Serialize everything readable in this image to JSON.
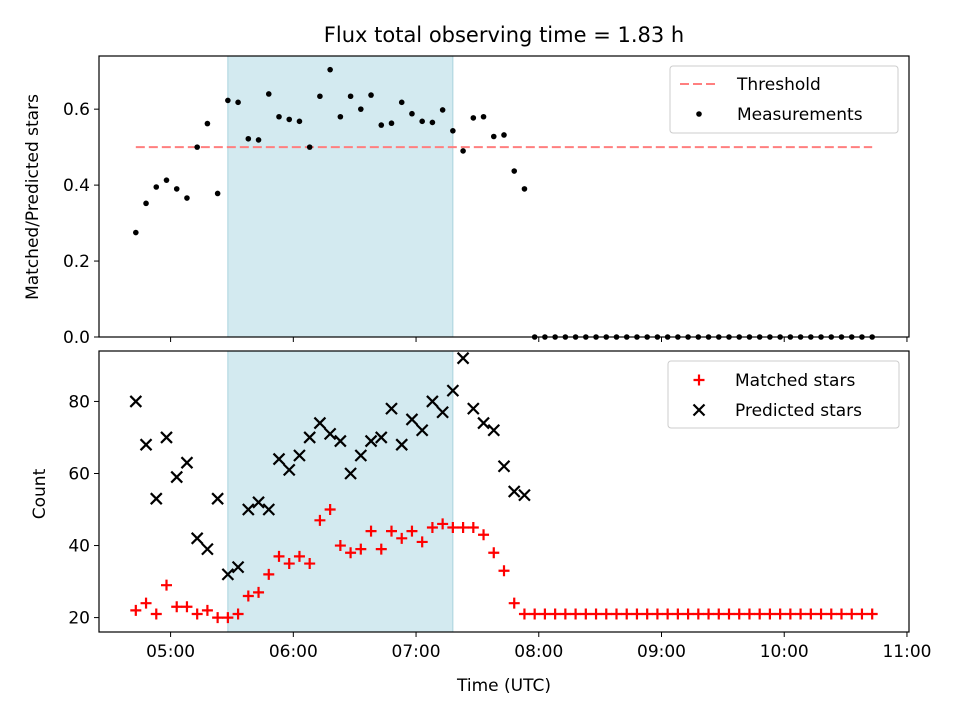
{
  "chart_data": [
    {
      "type": "scatter",
      "title": "Flux total observing time = 1.83 h",
      "xlabel": "",
      "ylabel": "Matched/Predicted stars",
      "xlim": [
        "04:25",
        "11:01"
      ],
      "ylim": [
        0,
        0.74
      ],
      "yticks": [
        0.0,
        0.2,
        0.4,
        0.6
      ],
      "ytick_labels": [
        "0.0",
        "0.2",
        "0.4",
        "0.6"
      ],
      "highlight_span": [
        "05:28",
        "07:18"
      ],
      "colors": {
        "highlight": "#d3eaf0",
        "threshold": "#ff7f7f",
        "measurements": "#000000"
      },
      "legend": [
        "Threshold",
        "Measurements"
      ],
      "legend_position": "top-right",
      "threshold": {
        "name": "Threshold",
        "y": 0.5,
        "x_range": [
          "04:43",
          "10:43"
        ]
      },
      "series": [
        {
          "name": "Measurements",
          "x": [
            "04:43",
            "04:48",
            "04:53",
            "04:58",
            "05:03",
            "05:08",
            "05:13",
            "05:18",
            "05:23",
            "05:28",
            "05:33",
            "05:38",
            "05:43",
            "05:48",
            "05:53",
            "05:58",
            "06:03",
            "06:08",
            "06:13",
            "06:18",
            "06:23",
            "06:28",
            "06:33",
            "06:38",
            "06:43",
            "06:48",
            "06:53",
            "06:58",
            "07:03",
            "07:08",
            "07:13",
            "07:18",
            "07:23",
            "07:28",
            "07:33",
            "07:38",
            "07:43",
            "07:48",
            "07:53",
            "07:58",
            "08:03",
            "08:08",
            "08:13",
            "08:18",
            "08:23",
            "08:28",
            "08:33",
            "08:38",
            "08:43",
            "08:48",
            "08:53",
            "08:58",
            "09:03",
            "09:08",
            "09:13",
            "09:18",
            "09:23",
            "09:28",
            "09:33",
            "09:38",
            "09:43",
            "09:48",
            "09:53",
            "09:58",
            "10:03",
            "10:08",
            "10:13",
            "10:18",
            "10:23",
            "10:28",
            "10:33",
            "10:38",
            "10:43"
          ],
          "y": [
            0.275,
            0.352,
            0.395,
            0.413,
            0.39,
            0.366,
            0.5,
            0.562,
            0.378,
            0.623,
            0.618,
            0.522,
            0.519,
            0.64,
            0.58,
            0.573,
            0.568,
            0.5,
            0.634,
            0.704,
            0.58,
            0.634,
            0.6,
            0.637,
            0.558,
            0.563,
            0.618,
            0.588,
            0.568,
            0.565,
            0.598,
            0.543,
            0.49,
            0.577,
            0.58,
            0.528,
            0.532,
            0.437,
            0.39,
            0.0,
            0.0,
            0.0,
            0.0,
            0.0,
            0.0,
            0.0,
            0.0,
            0.0,
            0.0,
            0.0,
            0.0,
            0.0,
            0.0,
            0.0,
            0.0,
            0.0,
            0.0,
            0.0,
            0.0,
            0.0,
            0.0,
            0.0,
            0.0,
            0.0,
            0.0,
            0.0,
            0.0,
            0.0,
            0.0,
            0.0,
            0.0,
            0.0,
            0.0
          ]
        }
      ]
    },
    {
      "type": "scatter",
      "title": "",
      "xlabel": "Time (UTC)",
      "ylabel": "Count",
      "xlim": [
        "04:25",
        "11:01"
      ],
      "ylim": [
        16,
        94
      ],
      "xticks": [
        "05:00",
        "06:00",
        "07:00",
        "08:00",
        "09:00",
        "10:00",
        "11:00"
      ],
      "yticks": [
        20,
        40,
        60,
        80
      ],
      "ytick_labels": [
        "20",
        "40",
        "60",
        "80"
      ],
      "highlight_span": [
        "05:28",
        "07:18"
      ],
      "colors": {
        "highlight": "#d3eaf0",
        "matched": "#ff0000",
        "predicted": "#000000"
      },
      "legend": [
        "Matched stars",
        "Predicted stars"
      ],
      "legend_position": "top-right",
      "series": [
        {
          "name": "Matched stars",
          "marker": "plus",
          "x": [
            "04:43",
            "04:48",
            "04:53",
            "04:58",
            "05:03",
            "05:08",
            "05:13",
            "05:18",
            "05:23",
            "05:28",
            "05:33",
            "05:38",
            "05:43",
            "05:48",
            "05:53",
            "05:58",
            "06:03",
            "06:08",
            "06:13",
            "06:18",
            "06:23",
            "06:28",
            "06:33",
            "06:38",
            "06:43",
            "06:48",
            "06:53",
            "06:58",
            "07:03",
            "07:08",
            "07:13",
            "07:18",
            "07:23",
            "07:28",
            "07:33",
            "07:38",
            "07:43",
            "07:48",
            "07:53",
            "07:58",
            "08:03",
            "08:08",
            "08:13",
            "08:18",
            "08:23",
            "08:28",
            "08:33",
            "08:38",
            "08:43",
            "08:48",
            "08:53",
            "08:58",
            "09:03",
            "09:08",
            "09:13",
            "09:18",
            "09:23",
            "09:28",
            "09:33",
            "09:38",
            "09:43",
            "09:48",
            "09:53",
            "09:58",
            "10:03",
            "10:08",
            "10:13",
            "10:18",
            "10:23",
            "10:28",
            "10:33",
            "10:38",
            "10:43"
          ],
          "y": [
            22,
            24,
            21,
            29,
            23,
            23,
            21,
            22,
            20,
            20,
            21,
            26,
            27,
            32,
            37,
            35,
            37,
            35,
            47,
            50,
            40,
            38,
            39,
            44,
            39,
            44,
            42,
            44,
            41,
            45,
            46,
            45,
            45,
            45,
            43,
            38,
            33,
            24,
            21,
            21,
            21,
            21,
            21,
            21,
            21,
            21,
            21,
            21,
            21,
            21,
            21,
            21,
            21,
            21,
            21,
            21,
            21,
            21,
            21,
            21,
            21,
            21,
            21,
            21,
            21,
            21,
            21,
            21,
            21,
            21,
            21,
            21,
            21
          ]
        },
        {
          "name": "Predicted stars",
          "marker": "x",
          "x": [
            "04:43",
            "04:48",
            "04:53",
            "04:58",
            "05:03",
            "05:08",
            "05:13",
            "05:18",
            "05:23",
            "05:28",
            "05:33",
            "05:38",
            "05:43",
            "05:48",
            "05:53",
            "05:58",
            "06:03",
            "06:08",
            "06:13",
            "06:18",
            "06:23",
            "06:28",
            "06:33",
            "06:38",
            "06:43",
            "06:48",
            "06:53",
            "06:58",
            "07:03",
            "07:08",
            "07:13",
            "07:18",
            "07:23",
            "07:28",
            "07:33",
            "07:38",
            "07:43",
            "07:48",
            "07:53"
          ],
          "y": [
            80,
            68,
            53,
            70,
            59,
            63,
            42,
            39,
            53,
            32,
            34,
            50,
            52,
            50,
            64,
            61,
            65,
            70,
            74,
            71,
            69,
            60,
            65,
            69,
            70,
            78,
            68,
            75,
            72,
            80,
            77,
            83,
            92,
            78,
            74,
            72,
            62,
            55,
            54
          ]
        }
      ]
    }
  ]
}
